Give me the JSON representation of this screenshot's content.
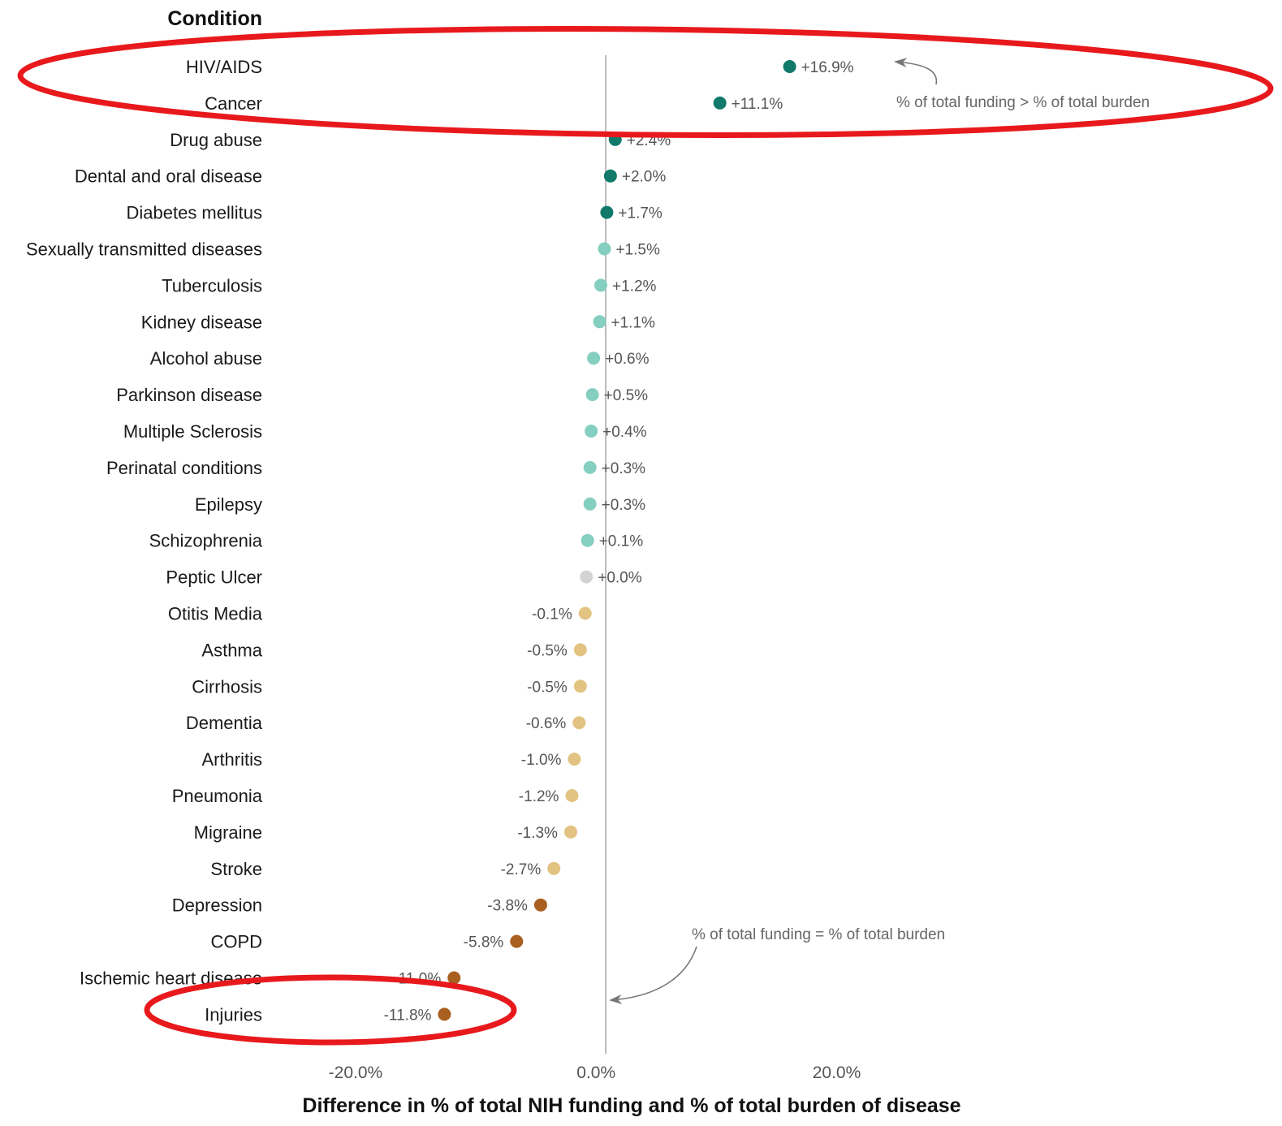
{
  "chart_data": {
    "type": "scatter",
    "header": "Condition",
    "xlabel": "Difference in % of total NIH funding and % of total burden of disease",
    "x_ticks": [
      "-20.0%",
      "0.0%",
      "20.0%"
    ],
    "x_tick_values": [
      -20,
      0,
      20
    ],
    "xlim": [
      -28.5,
      52.5
    ],
    "grid": false,
    "zero_line": true,
    "categories": [
      "HIV/AIDS",
      "Cancer",
      "Drug abuse",
      "Dental and oral disease",
      "Diabetes mellitus",
      "Sexually transmitted diseases",
      "Tuberculosis",
      "Kidney disease",
      "Alcohol abuse",
      "Parkinson disease",
      "Multiple Sclerosis",
      "Perinatal conditions",
      "Epilepsy",
      "Schizophrenia",
      "Peptic Ulcer",
      "Otitis Media",
      "Asthma",
      "Cirrhosis",
      "Dementia",
      "Arthritis",
      "Pneumonia",
      "Migraine",
      "Stroke",
      "Depression",
      "COPD",
      "Ischemic heart disease",
      "Injuries"
    ],
    "values": [
      16.9,
      11.1,
      2.4,
      2.0,
      1.7,
      1.5,
      1.2,
      1.1,
      0.6,
      0.5,
      0.4,
      0.3,
      0.3,
      0.1,
      0.0,
      -0.1,
      -0.5,
      -0.5,
      -0.6,
      -1.0,
      -1.2,
      -1.3,
      -2.7,
      -3.8,
      -5.8,
      -11.0,
      -11.8
    ],
    "value_labels": [
      "+16.9%",
      "+11.1%",
      "+2.4%",
      "+2.0%",
      "+1.7%",
      "+1.5%",
      "+1.2%",
      "+1.1%",
      "+0.6%",
      "+0.5%",
      "+0.4%",
      "+0.3%",
      "+0.3%",
      "+0.1%",
      "+0.0%",
      "-0.1%",
      "-0.5%",
      "-0.5%",
      "-0.6%",
      "-1.0%",
      "-1.2%",
      "-1.3%",
      "-2.7%",
      "-3.8%",
      "-5.8%",
      "-11.0%",
      "-11.8%"
    ],
    "point_colors": [
      "#117a6a",
      "#117a6a",
      "#117a6a",
      "#117a6a",
      "#117a6a",
      "#84cfbf",
      "#84cfbf",
      "#84cfbf",
      "#84cfbf",
      "#84cfbf",
      "#84cfbf",
      "#84cfbf",
      "#84cfbf",
      "#84cfbf",
      "#d3d3d3",
      "#e3c382",
      "#e3c382",
      "#e3c382",
      "#e3c382",
      "#e3c382",
      "#e3c382",
      "#e3c382",
      "#e3c382",
      "#a85f20",
      "#a85f20",
      "#a85f20",
      "#a85f20"
    ],
    "annotations": [
      {
        "text": "% of total funding > % of total burden"
      },
      {
        "text": "% of total funding = % of total burden"
      }
    ],
    "highlight_color": "#e8191c",
    "highlights": [
      "HIV/AIDS and Cancer rows",
      "Injuries row"
    ]
  }
}
